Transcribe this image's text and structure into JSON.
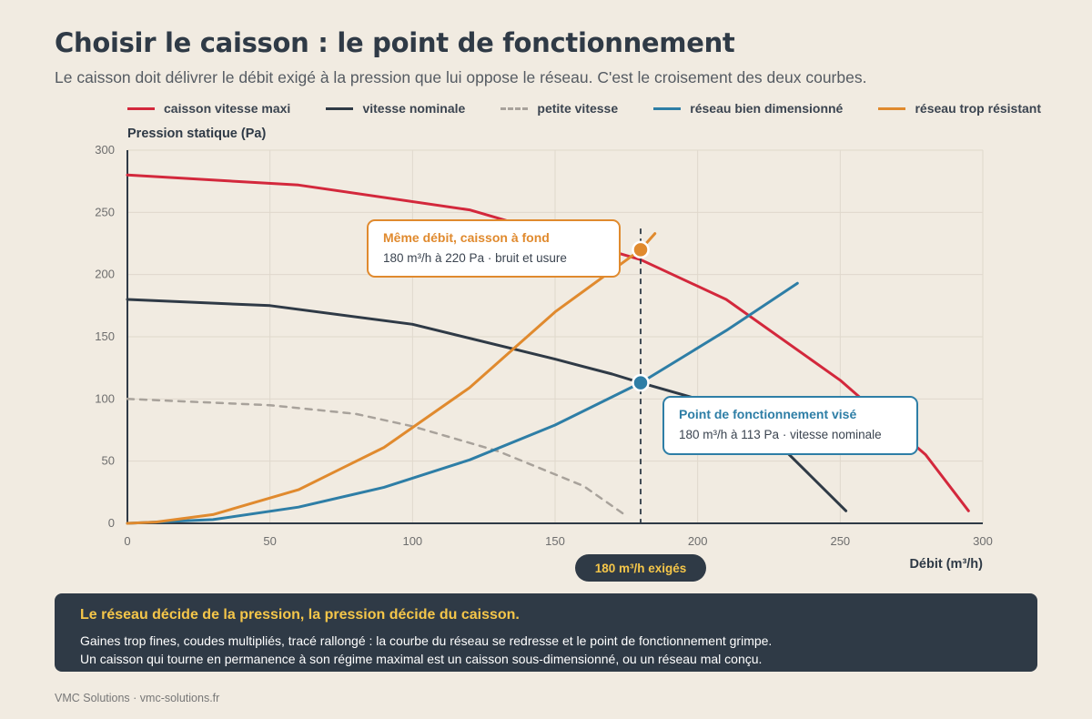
{
  "header": {
    "title": "Choisir le caisson : le point de fonctionnement",
    "subtitle": "Le caisson doit délivrer le débit exigé à la pression que lui oppose le réseau. C'est le croisement des deux courbes."
  },
  "legend": [
    {
      "label": "caisson vitesse maxi",
      "color": "#d3283c",
      "style": "solid"
    },
    {
      "label": "vitesse nominale",
      "color": "#2f3a46",
      "style": "solid"
    },
    {
      "label": "petite vitesse",
      "color": "#a8a29b",
      "style": "dashed"
    },
    {
      "label": "réseau bien dimensionné",
      "color": "#2e7ea6",
      "style": "solid"
    },
    {
      "label": "réseau trop résistant",
      "color": "#e08a2e",
      "style": "solid"
    }
  ],
  "chart_data": {
    "type": "line",
    "ylabel": "Pression statique (Pa)",
    "xlabel": "Débit (m³/h)",
    "xlim": [
      0,
      300
    ],
    "ylim": [
      0,
      300
    ],
    "xticks": [
      0,
      50,
      100,
      150,
      200,
      250,
      300
    ],
    "yticks": [
      0,
      50,
      100,
      150,
      200,
      250,
      300
    ],
    "grid": true,
    "legend_position": "top",
    "series": [
      {
        "name": "caisson vitesse maxi",
        "color": "#d3283c",
        "dashed": false,
        "x": [
          0,
          60,
          120,
          180,
          210,
          250,
          280,
          295
        ],
        "y": [
          280,
          272,
          252,
          212,
          180,
          115,
          55,
          10
        ]
      },
      {
        "name": "vitesse nominale",
        "color": "#2f3a46",
        "dashed": false,
        "x": [
          0,
          50,
          100,
          150,
          170,
          180,
          200,
          230,
          252
        ],
        "y": [
          180,
          175,
          160,
          132,
          120,
          113,
          100,
          60,
          10
        ]
      },
      {
        "name": "petite vitesse",
        "color": "#a8a29b",
        "dashed": true,
        "x": [
          0,
          50,
          80,
          100,
          130,
          160,
          175
        ],
        "y": [
          100,
          95,
          88,
          78,
          58,
          30,
          6
        ]
      },
      {
        "name": "réseau bien dimensionné",
        "color": "#2e7ea6",
        "dashed": false,
        "x": [
          0,
          30,
          60,
          90,
          120,
          150,
          180,
          210,
          235
        ],
        "y": [
          0,
          3,
          13,
          29,
          51,
          79,
          113,
          155,
          193
        ]
      },
      {
        "name": "réseau trop résistant",
        "color": "#e08a2e",
        "dashed": false,
        "x": [
          0,
          10,
          30,
          60,
          90,
          120,
          150,
          180,
          185
        ],
        "y": [
          0,
          1,
          7,
          27,
          61,
          109,
          170,
          220,
          233
        ]
      }
    ],
    "guide": {
      "x": 180,
      "label": "180 m³/h exigés"
    },
    "points": [
      {
        "x": 180,
        "y": 220,
        "color": "#e08a2e",
        "title": "Même débit, caisson à fond",
        "text": "180 m³/h à 220 Pa · bruit et usure"
      },
      {
        "x": 180,
        "y": 113,
        "color": "#2e7ea6",
        "title": "Point de fonctionnement visé",
        "text": "180 m³/h à 113 Pa · vitesse nominale"
      }
    ]
  },
  "banner": {
    "title": "Le réseau décide de la pression, la pression décide du caisson.",
    "line1": "Gaines trop fines, coudes multipliés, tracé rallongé : la courbe du réseau se redresse et le point de fonctionnement grimpe.",
    "line2": "Un caisson qui tourne en permanence à son régime maximal est un caisson sous-dimensionné, ou un réseau mal conçu."
  },
  "footer": "VMC Solutions · vmc-solutions.fr"
}
